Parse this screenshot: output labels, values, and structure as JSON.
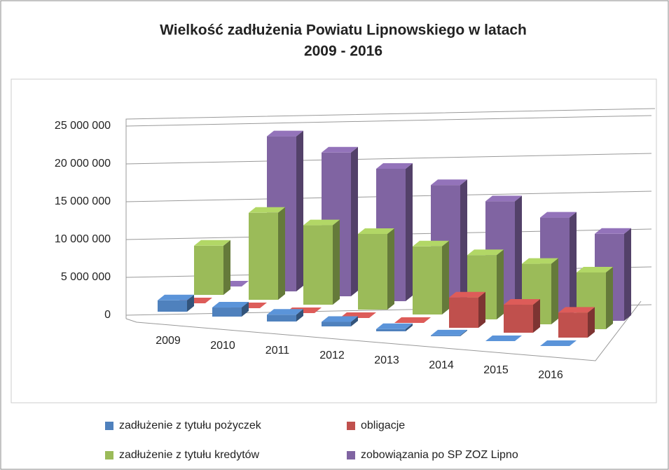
{
  "chart_data": {
    "type": "bar3d",
    "title": [
      "Wielkość zadłużenia Powiatu Lipnowskiego w latach",
      "2009 - 2016"
    ],
    "categories": [
      "2009",
      "2010",
      "2011",
      "2012",
      "2013",
      "2014",
      "2015",
      "2016"
    ],
    "series": [
      {
        "name": "zadłużenie z tytułu pożyczek",
        "color": "#4f81bd",
        "values": [
          1500000,
          1200000,
          900000,
          600000,
          300000,
          100000,
          0,
          0
        ]
      },
      {
        "name": "obligacje",
        "color": "#c0504d",
        "values": [
          0,
          0,
          0,
          0,
          0,
          4000000,
          3700000,
          3300000
        ]
      },
      {
        "name": "zadłużenie z tytułu kredytów",
        "color": "#9bbb59",
        "values": [
          6500000,
          11500000,
          10500000,
          10000000,
          9000000,
          8500000,
          8000000,
          7500000
        ]
      },
      {
        "name": "zobowiązania po SP ZOZ Lipno",
        "color": "#8064a2",
        "values": [
          0,
          20500000,
          19000000,
          17500000,
          16000000,
          14500000,
          13000000,
          11500000
        ]
      }
    ],
    "ylim": [
      0,
      25000000
    ],
    "yticks": [
      0,
      {
        "value": 5000000,
        "label": "5 000 000"
      },
      {
        "value": 10000000,
        "label": "10 000 000"
      },
      {
        "value": 15000000,
        "label": "15 000 000"
      },
      {
        "value": 20000000,
        "label": "20 000 000"
      },
      {
        "value": 25000000,
        "label": "25 000 000"
      }
    ],
    "grid": true
  }
}
